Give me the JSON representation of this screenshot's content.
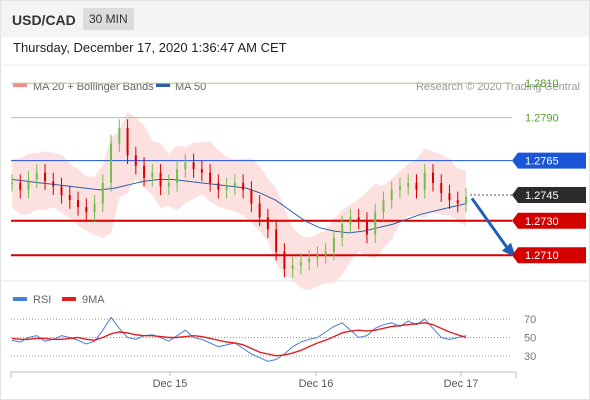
{
  "header": {
    "pair": "USD/CAD",
    "timeframe": "30 MIN"
  },
  "datetime": "Thursday, December 17, 2020 1:36:47 AM CET",
  "legend": {
    "ma20": "MA 20 + Bollinger Bands",
    "ma50": "MA 50",
    "ma20_color": "#f28b8b",
    "ma50_color": "#2d5fa6"
  },
  "credit": "Research © 2020 Trading Central",
  "colors": {
    "resistance": "#9fd27a",
    "support": "#d40000",
    "pivot": "#1a55d8",
    "up": "#6fbf4a",
    "down": "#d40000",
    "bb_fill": "#fde0e0",
    "rsi": "#4a7fd6",
    "ma9": "#e02020",
    "arrow": "#1f5fb8"
  },
  "chart_data": [
    {
      "type": "line",
      "title": "USD/CAD 30 MIN",
      "y_unit": "price",
      "ylim": [
        1.2695,
        1.282
      ],
      "x_ticks": [
        "Dec 15",
        "Dec 16",
        "Dec 17"
      ],
      "levels": [
        {
          "value": 1.281,
          "label": "1.2810",
          "kind": "resistance"
        },
        {
          "value": 1.279,
          "label": "1.2790",
          "kind": "resistance"
        },
        {
          "value": 1.2765,
          "label": "1.2765",
          "kind": "pivot"
        },
        {
          "value": 1.2745,
          "label": "1.2745",
          "kind": "last"
        },
        {
          "value": 1.273,
          "label": "1.2730",
          "kind": "support"
        },
        {
          "value": 1.271,
          "label": "1.2710",
          "kind": "support"
        }
      ],
      "series": [
        {
          "values": [
            1.2752,
            1.2748,
            1.2754,
            1.2758,
            1.2753,
            1.275,
            1.2745,
            1.2742,
            1.2738,
            1.2735,
            1.274,
            1.2752,
            1.2775,
            1.2784,
            1.2768,
            1.2762,
            1.2755,
            1.2758,
            1.275,
            1.2752,
            1.276,
            1.2764,
            1.276,
            1.2758,
            1.2752,
            1.2748,
            1.275,
            1.2752,
            1.2748,
            1.274,
            1.2732,
            1.2725,
            1.2712,
            1.2702,
            1.2704,
            1.2706,
            1.2708,
            1.271,
            1.2712,
            1.272,
            1.2728,
            1.2732,
            1.273,
            1.2722,
            1.2735,
            1.2742,
            1.2748,
            1.275,
            1.2752,
            1.2748,
            1.2758,
            1.2752,
            1.2746,
            1.2742,
            1.274,
            1.2744
          ]
        },
        {
          "name": "MA 50",
          "values": [
            1.2754,
            1.2753,
            1.2752,
            1.2751,
            1.275,
            1.2749,
            1.2748,
            1.2749,
            1.2751,
            1.2753,
            1.2754,
            1.2754,
            1.2753,
            1.2752,
            1.2751,
            1.275,
            1.2749,
            1.2746,
            1.2742,
            1.2736,
            1.273,
            1.2726,
            1.2724,
            1.2723,
            1.2724,
            1.2726,
            1.2728,
            1.2731,
            1.2734,
            1.2736,
            1.2738,
            1.274
          ]
        }
      ]
    },
    {
      "type": "line",
      "ylim": [
        20,
        80
      ],
      "y_ticks": [
        30,
        50,
        70
      ],
      "series": [
        {
          "name": "RSI",
          "values": [
            47,
            45,
            50,
            52,
            46,
            48,
            52,
            50,
            47,
            43,
            46,
            58,
            72,
            60,
            50,
            48,
            52,
            53,
            50,
            46,
            52,
            58,
            50,
            48,
            44,
            40,
            42,
            44,
            38,
            32,
            28,
            24,
            26,
            32,
            40,
            45,
            48,
            50,
            56,
            62,
            66,
            58,
            50,
            52,
            60,
            64,
            66,
            62,
            68,
            64,
            70,
            60,
            50,
            48,
            50,
            52
          ]
        },
        {
          "name": "9MA",
          "values": [
            49,
            48,
            48,
            49,
            49,
            48,
            48,
            49,
            50,
            48,
            47,
            50,
            54,
            56,
            55,
            53,
            52,
            52,
            51,
            50,
            50,
            51,
            52,
            51,
            49,
            47,
            45,
            44,
            42,
            38,
            34,
            32,
            30,
            31,
            33,
            36,
            40,
            44,
            47,
            51,
            55,
            57,
            58,
            57,
            58,
            60,
            62,
            63,
            64,
            65,
            66,
            64,
            60,
            56,
            53,
            50
          ]
        }
      ]
    }
  ]
}
